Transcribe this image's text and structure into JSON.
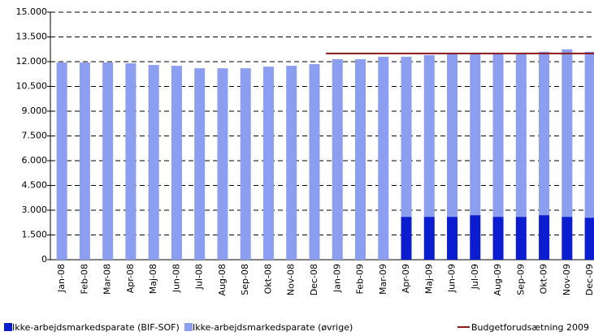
{
  "chart_data": {
    "type": "bar",
    "stacked": true,
    "categories": [
      "Jan-08",
      "Feb-08",
      "Mar-08",
      "Apr-08",
      "Maj-08",
      "Jun-08",
      "Jul-08",
      "Aug-08",
      "Sep-08",
      "Okt-08",
      "Nov-08",
      "Dec-08",
      "Jan-09",
      "Feb-09",
      "Mar-09",
      "Apr-09",
      "Maj-09",
      "Jun-09",
      "Jul-09",
      "Aug-09",
      "Sep-09",
      "Okt-09",
      "Nov-09",
      "Dec-09"
    ],
    "series": [
      {
        "name": "Ikke-arbejdsmarkedsparate (BIF-SOF)",
        "color": "#0a1ed0",
        "type": "bar",
        "values": [
          null,
          null,
          null,
          null,
          null,
          null,
          null,
          null,
          null,
          null,
          null,
          null,
          null,
          null,
          null,
          2600,
          2600,
          2600,
          2700,
          2600,
          2600,
          2700,
          2600,
          2550
        ]
      },
      {
        "name": "Ikke-arbejdsmarkedsparate (øvrige)",
        "color": "#8c9ef0",
        "type": "bar",
        "values": [
          11950,
          11950,
          11950,
          11900,
          11800,
          11750,
          11600,
          11600,
          11600,
          11700,
          11750,
          11850,
          12150,
          12150,
          12300,
          9700,
          9800,
          9900,
          9800,
          9900,
          9900,
          9900,
          10150,
          10050
        ]
      },
      {
        "name": "Budgetforudsætning 2009",
        "color": "#8b1a1a",
        "type": "line",
        "values": [
          null,
          null,
          null,
          null,
          null,
          null,
          null,
          null,
          null,
          null,
          null,
          null,
          12500,
          12500,
          12500,
          12500,
          12500,
          12500,
          12500,
          12500,
          12500,
          12500,
          12500,
          12500
        ]
      }
    ],
    "ylim": [
      0,
      15000
    ],
    "yticks": [
      0,
      {
        "value": 1500,
        "label": "1.500"
      },
      {
        "value": 3000,
        "label": "3.000"
      },
      {
        "value": 4500,
        "label": "4.500"
      },
      {
        "value": 6000,
        "label": "6.000"
      },
      {
        "value": 7500,
        "label": "7.500"
      },
      {
        "value": 9000,
        "label": "9.000"
      },
      {
        "value": 10500,
        "label": "10.500"
      },
      {
        "value": 12000,
        "label": "12.000"
      },
      {
        "value": 13500,
        "label": "13.500"
      },
      {
        "value": 15000,
        "label": "15.000"
      }
    ],
    "grid": true,
    "legend": "bottom"
  }
}
